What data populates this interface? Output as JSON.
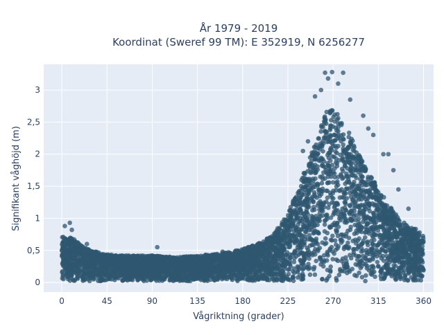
{
  "chart_data": {
    "type": "scatter",
    "title_lines": [
      "År 1979 - 2019",
      "Koordinat (Sweref 99 TM): E 352919, N 6256277"
    ],
    "xlabel": "Vågriktning (grader)",
    "ylabel": "Signifikant våghöjd (m)",
    "xlim": [
      -18,
      370
    ],
    "ylim": [
      -0.15,
      3.4
    ],
    "x_ticks": [
      0,
      45,
      90,
      135,
      180,
      225,
      270,
      315,
      360
    ],
    "x_tick_labels": [
      "0",
      "45",
      "90",
      "135",
      "180",
      "225",
      "270",
      "315",
      "360"
    ],
    "y_ticks": [
      0,
      0.5,
      1,
      1.5,
      2,
      2.5,
      3
    ],
    "y_tick_labels": [
      "0",
      "0,5",
      "1",
      "1,5",
      "2",
      "2,5",
      "3"
    ],
    "grid": true,
    "marker_color": "#2f5770",
    "plot_bg": "#e5ecf6",
    "envelope": {
      "direction": [
        0,
        10,
        20,
        30,
        45,
        60,
        75,
        90,
        105,
        120,
        135,
        150,
        165,
        180,
        195,
        210,
        225,
        235,
        245,
        255,
        262,
        268,
        275,
        285,
        295,
        305,
        315,
        325,
        335,
        345,
        355,
        360
      ],
      "max_height": [
        0.7,
        0.68,
        0.55,
        0.48,
        0.42,
        0.4,
        0.4,
        0.4,
        0.38,
        0.38,
        0.4,
        0.42,
        0.45,
        0.5,
        0.58,
        0.72,
        1.05,
        1.45,
        1.85,
        2.3,
        2.6,
        2.75,
        2.6,
        2.35,
        2.0,
        1.7,
        1.45,
        1.2,
        1.0,
        0.85,
        0.8,
        0.7
      ]
    },
    "outliers": [
      {
        "x": 262,
        "y": 3.27
      },
      {
        "x": 269,
        "y": 3.28
      },
      {
        "x": 280,
        "y": 3.27
      },
      {
        "x": 265,
        "y": 3.18
      },
      {
        "x": 275,
        "y": 3.1
      },
      {
        "x": 258,
        "y": 3.0
      },
      {
        "x": 287,
        "y": 2.85
      },
      {
        "x": 252,
        "y": 2.9
      },
      {
        "x": 300,
        "y": 2.6
      },
      {
        "x": 305,
        "y": 2.4
      },
      {
        "x": 310,
        "y": 2.3
      },
      {
        "x": 320,
        "y": 2.0
      },
      {
        "x": 325,
        "y": 2.0
      },
      {
        "x": 330,
        "y": 1.75
      },
      {
        "x": 335,
        "y": 1.45
      },
      {
        "x": 345,
        "y": 1.15
      },
      {
        "x": 8,
        "y": 0.93
      },
      {
        "x": 3,
        "y": 0.88
      },
      {
        "x": 10,
        "y": 0.82
      },
      {
        "x": 25,
        "y": 0.6
      },
      {
        "x": 95,
        "y": 0.55
      },
      {
        "x": 160,
        "y": 0.48
      },
      {
        "x": 240,
        "y": 2.05
      },
      {
        "x": 245,
        "y": 2.2
      }
    ]
  }
}
